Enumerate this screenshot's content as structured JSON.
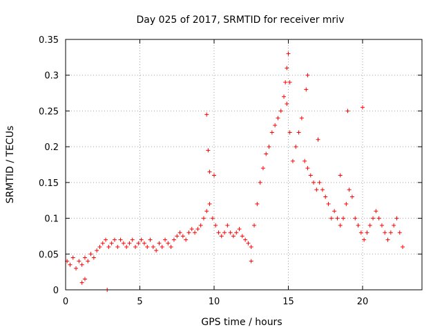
{
  "chart_data": {
    "type": "scatter",
    "title": "Day 025 of 2017, SRMTID for receiver mriv",
    "xlabel": "GPS time / hours",
    "ylabel": "SRMTID / TECUs",
    "xlim": [
      0,
      24
    ],
    "ylim": [
      0,
      0.35
    ],
    "x_ticks": [
      0,
      5,
      10,
      15,
      20
    ],
    "x_tick_labels": [
      "0",
      "5",
      "10",
      "15",
      "20"
    ],
    "y_ticks": [
      0,
      0.05,
      0.1,
      0.15,
      0.2,
      0.25,
      0.3,
      0.35
    ],
    "y_tick_labels": [
      "0",
      "0.05",
      "0.1",
      "0.15",
      "0.2",
      "0.25",
      "0.3",
      "0.35"
    ],
    "grid": true,
    "marker": "+",
    "series_color": "#ff0000",
    "series": [
      {
        "name": "SRMTID",
        "x": [
          0.1,
          0.3,
          0.5,
          0.7,
          0.9,
          1.1,
          1.3,
          1.5,
          1.7,
          1.9,
          2.1,
          2.3,
          2.5,
          2.7,
          2.9,
          3.1,
          3.3,
          3.5,
          3.7,
          3.9,
          4.1,
          4.3,
          4.5,
          4.7,
          4.9,
          5.1,
          5.3,
          5.5,
          5.7,
          5.9,
          6.1,
          6.3,
          6.5,
          6.7,
          6.9,
          7.1,
          7.3,
          7.5,
          7.7,
          7.9,
          8.1,
          8.3,
          8.5,
          8.7,
          8.9,
          9.1,
          9.3,
          9.5,
          9.7,
          9.9,
          10.1,
          10.3,
          10.5,
          10.7,
          10.9,
          11.1,
          11.3,
          11.5,
          11.7,
          11.9,
          12.1,
          12.3,
          12.5,
          12.7,
          12.9,
          13.1,
          13.3,
          13.5,
          13.7,
          13.9,
          14.1,
          14.3,
          14.5,
          14.7,
          14.9,
          15.1,
          15.3,
          15.5,
          15.7,
          15.9,
          16.1,
          16.3,
          16.5,
          16.7,
          16.9,
          17.1,
          17.3,
          17.5,
          17.7,
          17.9,
          18.1,
          18.3,
          18.5,
          18.7,
          18.9,
          19.1,
          19.3,
          19.5,
          19.7,
          19.9,
          20.1,
          20.3,
          20.5,
          20.7,
          20.9,
          21.1,
          21.3,
          21.5,
          21.7,
          21.9,
          22.1,
          22.3,
          22.5,
          22.7,
          9.5,
          9.6,
          9.7,
          15.0,
          14.9,
          15.1,
          19.0,
          20.0,
          2.8,
          1.1,
          1.3,
          12.5,
          16.3,
          16.2,
          14.8,
          17.0,
          18.5,
          10.0
        ],
        "y": [
          0.04,
          0.035,
          0.045,
          0.03,
          0.04,
          0.035,
          0.045,
          0.04,
          0.05,
          0.045,
          0.055,
          0.06,
          0.065,
          0.07,
          0.06,
          0.065,
          0.07,
          0.06,
          0.07,
          0.065,
          0.06,
          0.065,
          0.07,
          0.06,
          0.065,
          0.07,
          0.065,
          0.06,
          0.07,
          0.06,
          0.055,
          0.065,
          0.06,
          0.07,
          0.065,
          0.06,
          0.07,
          0.075,
          0.08,
          0.075,
          0.07,
          0.08,
          0.085,
          0.08,
          0.085,
          0.09,
          0.1,
          0.11,
          0.12,
          0.1,
          0.09,
          0.08,
          0.075,
          0.08,
          0.09,
          0.08,
          0.075,
          0.08,
          0.085,
          0.075,
          0.07,
          0.065,
          0.06,
          0.09,
          0.12,
          0.15,
          0.17,
          0.19,
          0.2,
          0.22,
          0.23,
          0.24,
          0.25,
          0.27,
          0.26,
          0.22,
          0.18,
          0.2,
          0.22,
          0.24,
          0.18,
          0.17,
          0.16,
          0.15,
          0.14,
          0.15,
          0.14,
          0.13,
          0.12,
          0.1,
          0.11,
          0.1,
          0.09,
          0.1,
          0.12,
          0.14,
          0.13,
          0.1,
          0.09,
          0.08,
          0.07,
          0.08,
          0.09,
          0.1,
          0.11,
          0.1,
          0.09,
          0.08,
          0.07,
          0.08,
          0.09,
          0.1,
          0.08,
          0.06,
          0.245,
          0.195,
          0.165,
          0.33,
          0.31,
          0.29,
          0.25,
          0.255,
          0.0,
          0.01,
          0.015,
          0.04,
          0.3,
          0.28,
          0.29,
          0.21,
          0.16,
          0.16
        ]
      }
    ]
  }
}
